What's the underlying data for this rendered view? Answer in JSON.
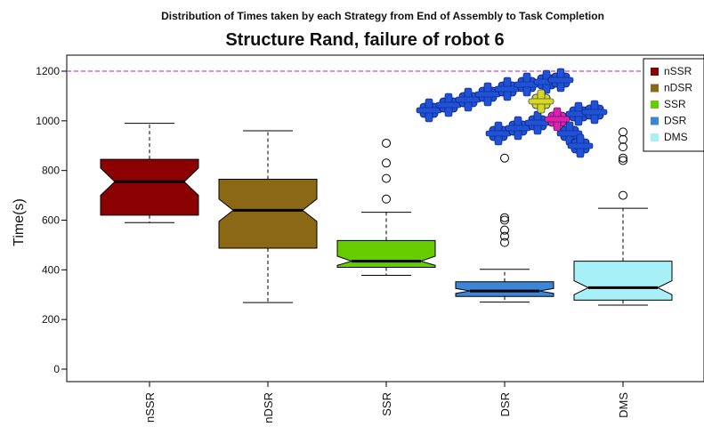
{
  "chart_data": {
    "type": "box",
    "suptitle": "Distribution of Times taken by each Strategy from End of Assembly to Task Completion",
    "title": "Structure Rand, failure of robot 6",
    "xlabel": "",
    "ylabel": "Time(s)",
    "ylim": [
      -40,
      1250
    ],
    "yticks": [
      0,
      200,
      400,
      600,
      800,
      1000,
      1200
    ],
    "reference_line": {
      "y": 1200,
      "color": "#cc44cc",
      "style": "dashed"
    },
    "notched": true,
    "legend": {
      "position": "top-right"
    },
    "series": [
      {
        "name": "nSSR",
        "color": "#8b0000",
        "whisker_low": 590,
        "q1": 620,
        "median": 755,
        "q3": 845,
        "whisker_high": 990,
        "notch_low": 700,
        "notch_high": 810,
        "outliers": []
      },
      {
        "name": "nDSR",
        "color": "#8b6914",
        "whisker_low": 268,
        "q1": 487,
        "median": 640,
        "q3": 765,
        "whisker_high": 960,
        "notch_low": 595,
        "notch_high": 685,
        "outliers": []
      },
      {
        "name": "SSR",
        "color": "#66cc00",
        "whisker_low": 378,
        "q1": 410,
        "median": 435,
        "q3": 518,
        "whisker_high": 632,
        "notch_low": 418,
        "notch_high": 455,
        "outliers": [
          685,
          768,
          830,
          910
        ]
      },
      {
        "name": "DSR",
        "color": "#3a86d8",
        "whisker_low": 270,
        "q1": 293,
        "median": 315,
        "q3": 352,
        "whisker_high": 402,
        "notch_low": 305,
        "notch_high": 325,
        "outliers": [
          510,
          535,
          560,
          600,
          610,
          850
        ]
      },
      {
        "name": "DMS",
        "color": "#a8f0f8",
        "whisker_low": 258,
        "q1": 278,
        "median": 328,
        "q3": 435,
        "whisker_high": 648,
        "notch_low": 300,
        "notch_high": 356,
        "outliers": [
          700,
          840,
          850,
          895,
          925,
          955
        ]
      }
    ]
  },
  "inset": {
    "colors": {
      "body": "#1f52d6",
      "yellow": "#d8d820",
      "magenta": "#e020a8"
    }
  }
}
